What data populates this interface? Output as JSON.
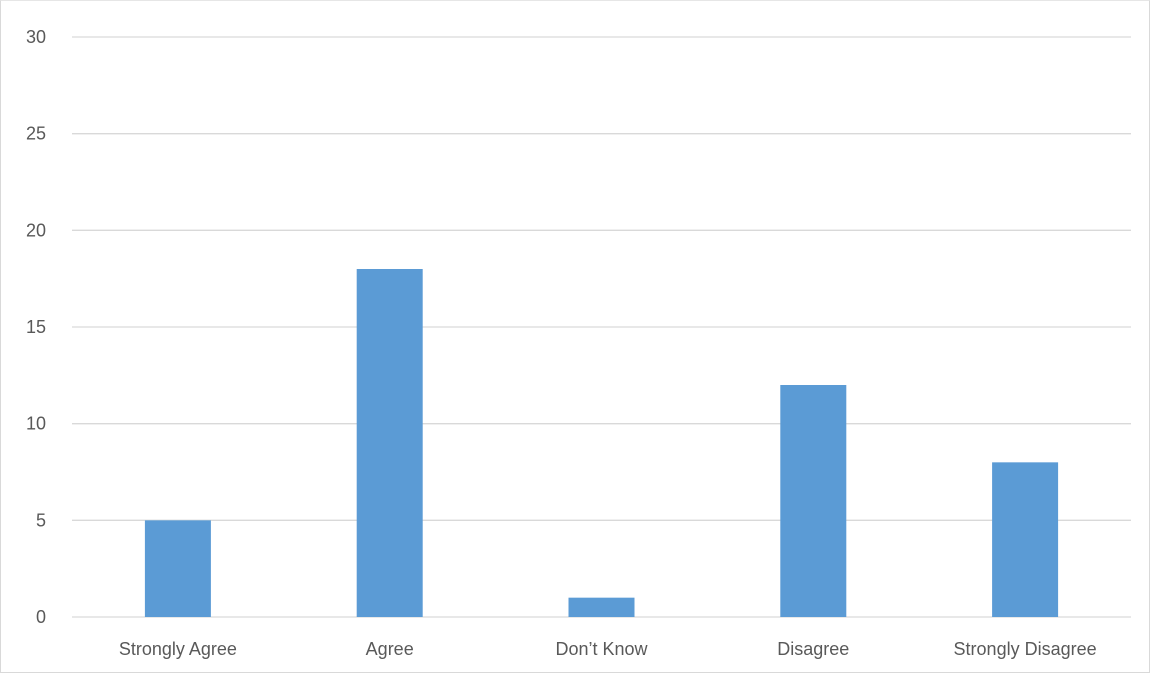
{
  "chart_data": {
    "type": "bar",
    "title": "",
    "xlabel": "",
    "ylabel": "",
    "categories": [
      "Strongly Agree",
      "Agree",
      "Don’t Know",
      "Disagree",
      "Strongly Disagree"
    ],
    "values": [
      5,
      18,
      1,
      12,
      8
    ],
    "ylim": [
      0,
      30
    ],
    "yticks": [
      "0",
      "5",
      "10",
      "15",
      "20",
      "25",
      "30"
    ],
    "grid": true,
    "legend": "none",
    "bar_color": "#5b9bd5"
  }
}
